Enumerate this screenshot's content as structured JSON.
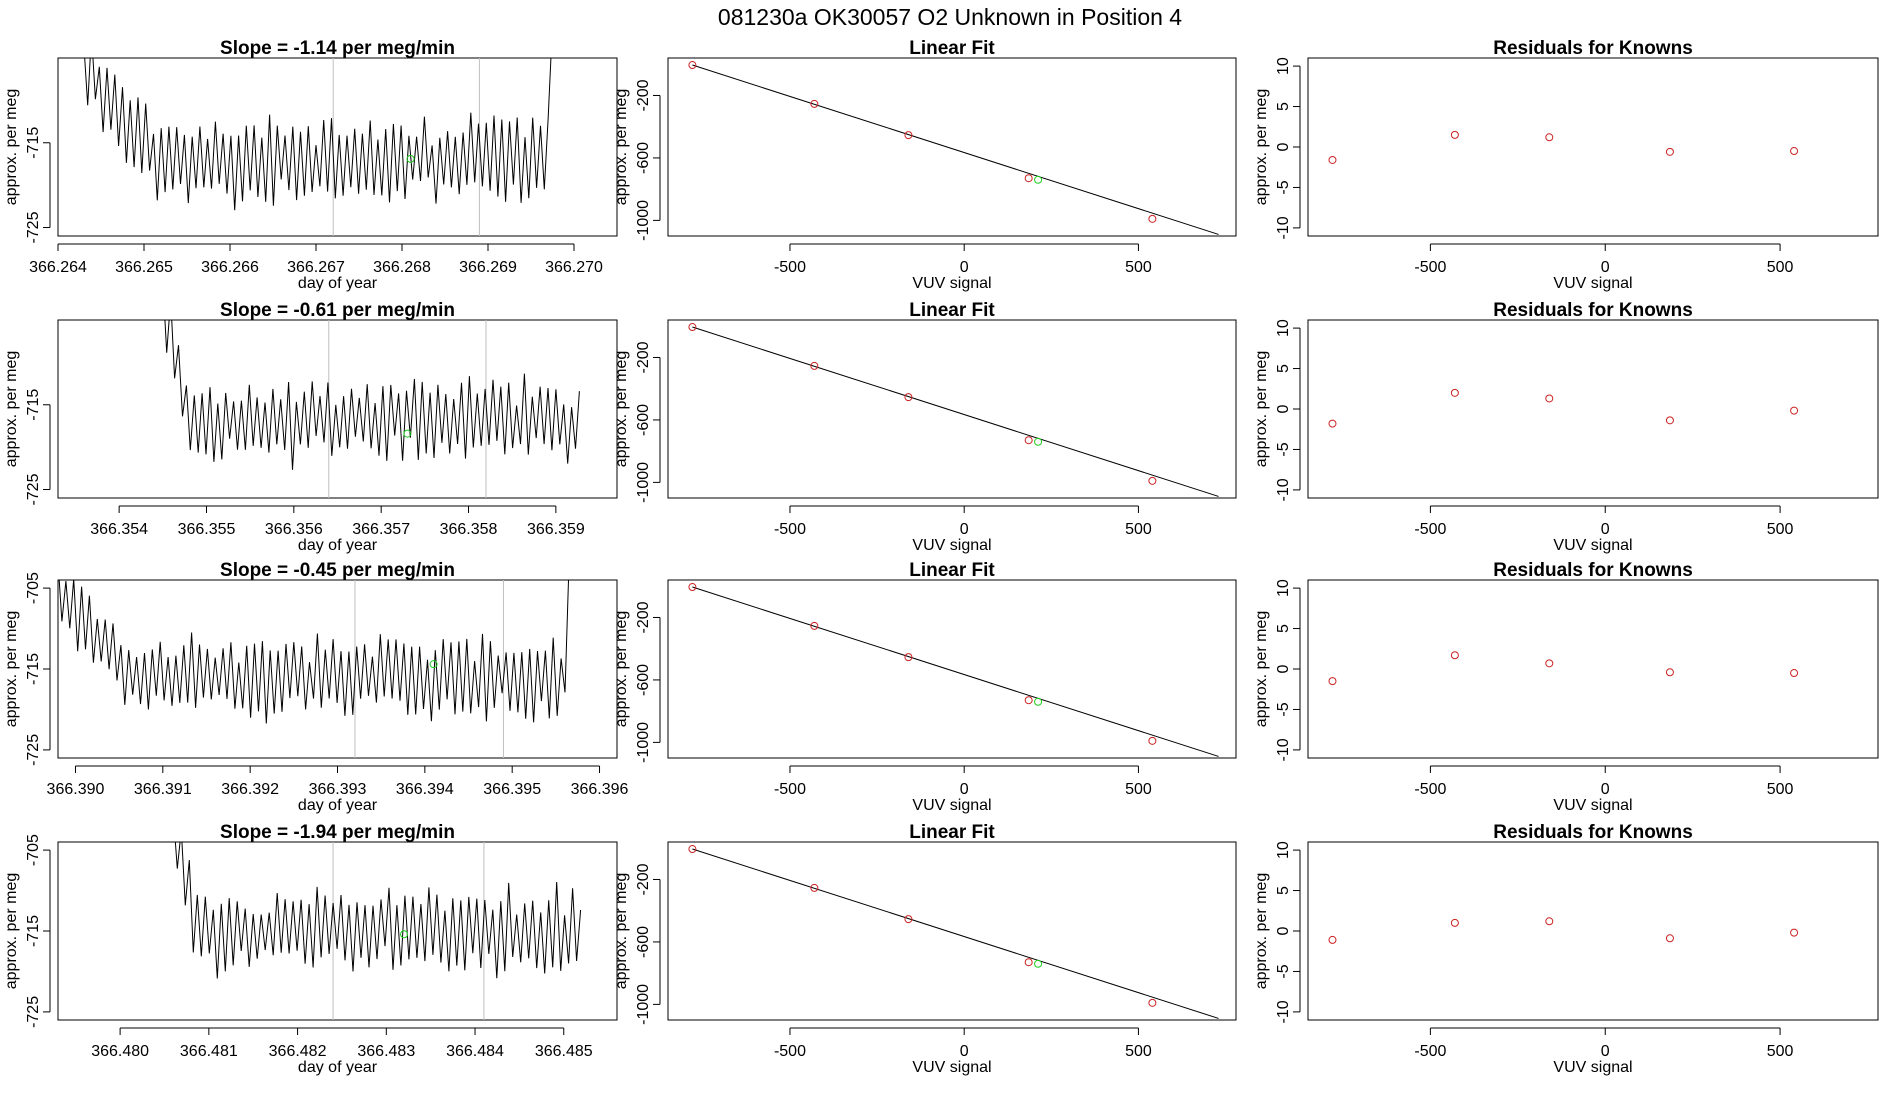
{
  "header": {
    "title": "081230a      OK30057   O2 Unknown in Position  4"
  },
  "colors": {
    "axis": "#000000",
    "trace": "#000000",
    "known": "#cc2222",
    "unknown": "#22cc22",
    "vline": "#bfbfbf"
  },
  "chart_data": [
    {
      "row": 0,
      "time_series": {
        "type": "line",
        "title": "Slope =  -1.14  per meg/min",
        "xlabel": "day of year",
        "ylabel": "approx. per meg",
        "xlim": [
          366.264,
          366.2705
        ],
        "ylim": [
          -726,
          -705
        ],
        "xticks": [
          366.264,
          366.265,
          366.266,
          366.267,
          366.268,
          366.269,
          366.27
        ],
        "xtick_labels": [
          "366.264",
          "366.265",
          "366.266",
          "366.267",
          "366.268",
          "366.269",
          "366.270"
        ],
        "yticks": [
          -715,
          -725
        ],
        "ytick_labels": [
          "-715",
          "-725"
        ],
        "vlines": [
          366.2672,
          366.2689
        ],
        "start": 366.2643,
        "end": 366.2698,
        "rise_end": 366.2652,
        "cycle": 9e-05,
        "amplitude": 4.2,
        "mean": -717,
        "start_level": -706,
        "end_level": -700,
        "end_ramp": 366.26975,
        "seed": 11,
        "unknown_point": [
          366.2681,
          -716.9
        ]
      },
      "linear_fit": {
        "type": "scatter",
        "title": "Linear Fit",
        "xlabel": "VUV signal",
        "ylabel": "approx. per meg",
        "xlim": [
          -850,
          780
        ],
        "ylim": [
          -1100,
          40
        ],
        "xticks": [
          -500,
          0,
          500
        ],
        "xtick_labels": [
          "-500",
          "0",
          "500"
        ],
        "yticks": [
          -200,
          -600,
          -1000
        ],
        "ytick_labels": [
          "-200",
          "-600",
          "-1000"
        ],
        "line": {
          "x": [
            -780,
            730
          ],
          "y": [
            -5,
            -1090
          ]
        },
        "known_points": [
          [
            -780,
            -5
          ],
          [
            -430,
            -254
          ],
          [
            -160,
            -454
          ],
          [
            185,
            -730
          ],
          [
            540,
            -990
          ]
        ],
        "unknown_point": [
          212,
          -740
        ]
      },
      "residuals": {
        "type": "scatter",
        "title": "Residuals for Knowns",
        "xlabel": "VUV signal",
        "ylabel": "approx. per meg",
        "xlim": [
          -850,
          780
        ],
        "ylim": [
          -11,
          11
        ],
        "xticks": [
          -500,
          0,
          500
        ],
        "xtick_labels": [
          "-500",
          "0",
          "500"
        ],
        "yticks": [
          10,
          5,
          0,
          -5,
          -10
        ],
        "ytick_labels": [
          "10",
          "5",
          "0",
          "-5",
          "-10"
        ],
        "points": [
          [
            -780,
            -1.6
          ],
          [
            -430,
            1.5
          ],
          [
            -160,
            1.2
          ],
          [
            185,
            -0.6
          ],
          [
            540,
            -0.5
          ]
        ]
      }
    },
    {
      "row": 1,
      "time_series": {
        "type": "line",
        "title": "Slope =  -0.61  per meg/min",
        "xlabel": "day of year",
        "ylabel": "approx. per meg",
        "xlim": [
          366.3533,
          366.3597
        ],
        "ylim": [
          -726,
          -705
        ],
        "xticks": [
          366.354,
          366.355,
          366.356,
          366.357,
          366.358,
          366.359
        ],
        "xtick_labels": [
          "366.354",
          "366.355",
          "366.356",
          "366.357",
          "366.358",
          "366.359"
        ],
        "yticks": [
          -715,
          -725
        ],
        "ytick_labels": [
          "-715",
          "-725"
        ],
        "vlines": [
          366.3564,
          366.3582
        ],
        "start": 366.3545,
        "end": 366.3593,
        "rise_end": 366.3548,
        "cycle": 9e-05,
        "amplitude": 4.0,
        "mean": -717,
        "start_level": -703,
        "end_level": -712,
        "end_ramp": 366.3593,
        "seed": 23,
        "unknown_point": [
          366.3573,
          -718.4
        ]
      },
      "linear_fit": {
        "type": "scatter",
        "title": "Linear Fit",
        "xlabel": "VUV signal",
        "ylabel": "approx. per meg",
        "xlim": [
          -850,
          780
        ],
        "ylim": [
          -1100,
          40
        ],
        "xticks": [
          -500,
          0,
          500
        ],
        "xtick_labels": [
          "-500",
          "0",
          "500"
        ],
        "yticks": [
          -200,
          -600,
          -1000
        ],
        "ytick_labels": [
          "-200",
          "-600",
          "-1000"
        ],
        "line": {
          "x": [
            -780,
            730
          ],
          "y": [
            -5,
            -1090
          ]
        },
        "known_points": [
          [
            -780,
            -5
          ],
          [
            -430,
            -254
          ],
          [
            -160,
            -454
          ],
          [
            185,
            -730
          ],
          [
            540,
            -990
          ]
        ],
        "unknown_point": [
          212,
          -740
        ]
      },
      "residuals": {
        "type": "scatter",
        "title": "Residuals for Knowns",
        "xlabel": "VUV signal",
        "ylabel": "approx. per meg",
        "xlim": [
          -850,
          780
        ],
        "ylim": [
          -11,
          11
        ],
        "xticks": [
          -500,
          0,
          500
        ],
        "xtick_labels": [
          "-500",
          "0",
          "500"
        ],
        "yticks": [
          10,
          5,
          0,
          -5,
          -10
        ],
        "ytick_labels": [
          "10",
          "5",
          "0",
          "-5",
          "-10"
        ],
        "points": [
          [
            -780,
            -1.8
          ],
          [
            -430,
            2.0
          ],
          [
            -160,
            1.3
          ],
          [
            185,
            -1.4
          ],
          [
            540,
            -0.2
          ]
        ]
      }
    },
    {
      "row": 2,
      "time_series": {
        "type": "line",
        "title": "Slope =  -0.45  per meg/min",
        "xlabel": "day of year",
        "ylabel": "approx. per meg",
        "xlim": [
          366.3898,
          366.3962
        ],
        "ylim": [
          -726,
          -704
        ],
        "xticks": [
          366.39,
          366.391,
          366.392,
          366.393,
          366.394,
          366.395,
          366.396
        ],
        "xtick_labels": [
          "366.390",
          "366.391",
          "366.392",
          "366.393",
          "366.394",
          "366.395",
          "366.396"
        ],
        "yticks": [
          -705,
          -715,
          -725
        ],
        "ytick_labels": [
          "-705",
          "-715",
          "-725"
        ],
        "vlines": [
          366.3932,
          366.3949
        ],
        "start": 366.3898,
        "end": 366.3957,
        "rise_end": 366.3906,
        "cycle": 9e-05,
        "amplitude": 4.2,
        "mean": -716,
        "start_level": -705,
        "end_level": -702,
        "end_ramp": 366.39565,
        "seed": 37,
        "unknown_point": [
          366.3941,
          -714.4
        ]
      },
      "linear_fit": {
        "type": "scatter",
        "title": "Linear Fit",
        "xlabel": "VUV signal",
        "ylabel": "approx. per meg",
        "xlim": [
          -850,
          780
        ],
        "ylim": [
          -1100,
          40
        ],
        "xticks": [
          -500,
          0,
          500
        ],
        "xtick_labels": [
          "-500",
          "0",
          "500"
        ],
        "yticks": [
          -200,
          -600,
          -1000
        ],
        "ytick_labels": [
          "-200",
          "-600",
          "-1000"
        ],
        "line": {
          "x": [
            -780,
            730
          ],
          "y": [
            -5,
            -1090
          ]
        },
        "known_points": [
          [
            -780,
            -5
          ],
          [
            -430,
            -254
          ],
          [
            -160,
            -454
          ],
          [
            185,
            -730
          ],
          [
            540,
            -990
          ]
        ],
        "unknown_point": [
          212,
          -740
        ]
      },
      "residuals": {
        "type": "scatter",
        "title": "Residuals for Knowns",
        "xlabel": "VUV signal",
        "ylabel": "approx. per meg",
        "xlim": [
          -850,
          780
        ],
        "ylim": [
          -11,
          11
        ],
        "xticks": [
          -500,
          0,
          500
        ],
        "xtick_labels": [
          "-500",
          "0",
          "500"
        ],
        "yticks": [
          10,
          5,
          0,
          -5,
          -10
        ],
        "ytick_labels": [
          "10",
          "5",
          "0",
          "-5",
          "-10"
        ],
        "points": [
          [
            -780,
            -1.5
          ],
          [
            -430,
            1.7
          ],
          [
            -160,
            0.7
          ],
          [
            185,
            -0.4
          ],
          [
            540,
            -0.5
          ]
        ]
      }
    },
    {
      "row": 3,
      "time_series": {
        "type": "line",
        "title": "Slope =  -1.94  per meg/min",
        "xlabel": "day of year",
        "ylabel": "approx. per meg",
        "xlim": [
          366.4793,
          366.4856
        ],
        "ylim": [
          -726,
          -704
        ],
        "xticks": [
          366.48,
          366.481,
          366.482,
          366.483,
          366.484,
          366.485
        ],
        "xtick_labels": [
          "366.480",
          "366.481",
          "366.482",
          "366.483",
          "366.484",
          "366.485"
        ],
        "yticks": [
          -705,
          -715,
          -725
        ],
        "ytick_labels": [
          "-705",
          "-715",
          "-725"
        ],
        "vlines": [
          366.4824,
          366.4841
        ],
        "start": 366.4806,
        "end": 366.4852,
        "rise_end": 366.4809,
        "cycle": 9e-05,
        "amplitude": 4.3,
        "mean": -715,
        "start_level": -703,
        "end_level": -713,
        "end_ramp": 366.4852,
        "seed": 53,
        "unknown_point": [
          366.4832,
          -715.4
        ]
      },
      "linear_fit": {
        "type": "scatter",
        "title": "Linear Fit",
        "xlabel": "VUV signal",
        "ylabel": "approx. per meg",
        "xlim": [
          -850,
          780
        ],
        "ylim": [
          -1100,
          40
        ],
        "xticks": [
          -500,
          0,
          500
        ],
        "xtick_labels": [
          "-500",
          "0",
          "500"
        ],
        "yticks": [
          -200,
          -600,
          -1000
        ],
        "ytick_labels": [
          "-200",
          "-600",
          "-1000"
        ],
        "line": {
          "x": [
            -780,
            730
          ],
          "y": [
            -5,
            -1090
          ]
        },
        "known_points": [
          [
            -780,
            -5
          ],
          [
            -430,
            -254
          ],
          [
            -160,
            -454
          ],
          [
            185,
            -730
          ],
          [
            540,
            -990
          ]
        ],
        "unknown_point": [
          212,
          -740
        ]
      },
      "residuals": {
        "type": "scatter",
        "title": "Residuals for Knowns",
        "xlabel": "VUV signal",
        "ylabel": "approx. per meg",
        "xlim": [
          -850,
          780
        ],
        "ylim": [
          -11,
          11
        ],
        "xticks": [
          -500,
          0,
          500
        ],
        "xtick_labels": [
          "-500",
          "0",
          "500"
        ],
        "yticks": [
          10,
          5,
          0,
          -5,
          -10
        ],
        "ytick_labels": [
          "10",
          "5",
          "0",
          "-5",
          "-10"
        ],
        "points": [
          [
            -780,
            -1.1
          ],
          [
            -430,
            1.0
          ],
          [
            -160,
            1.2
          ],
          [
            185,
            -0.9
          ],
          [
            540,
            -0.2
          ]
        ]
      }
    }
  ]
}
